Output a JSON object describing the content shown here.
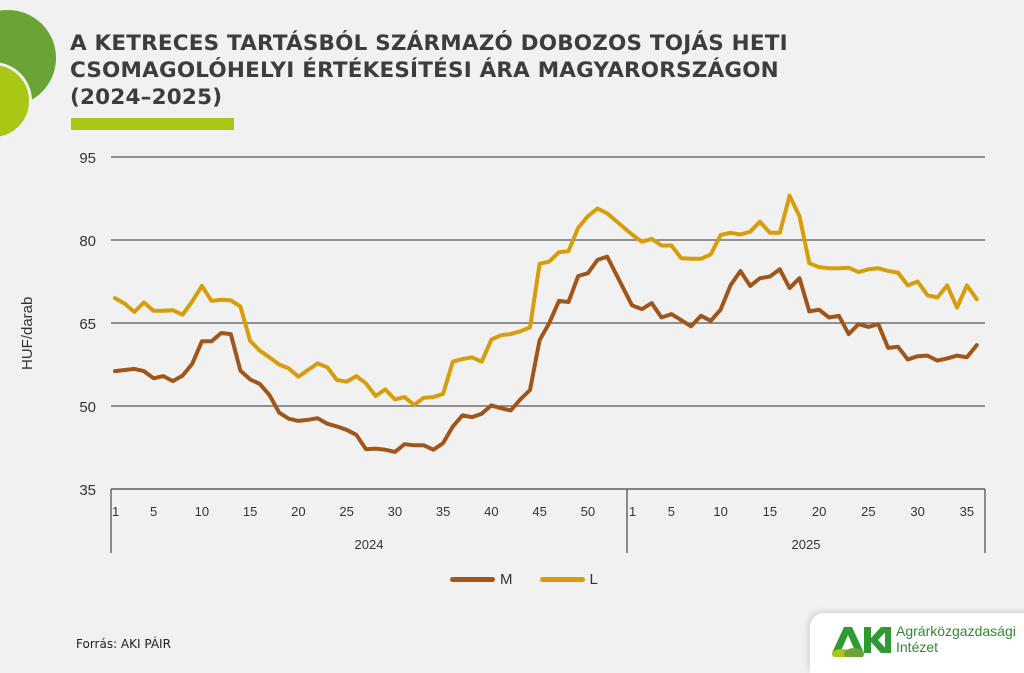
{
  "header": {
    "title": "A KETRECES TARTÁSBÓL SZÁRMAZÓ DOBOZOS TOJÁS HETI\nCSOMAGOLÓHELYI ÉRTÉKESÍTÉSI ÁRA MAGYARORSZÁGON\n(2024–2025)"
  },
  "colors": {
    "M": "#a0561a",
    "L": "#d69e0c",
    "accent_green": "#6aa437",
    "accent_lime": "#a9c816",
    "grid": "#555555"
  },
  "legend": {
    "items": [
      {
        "label": "M",
        "color": "#a0561a"
      },
      {
        "label": "L",
        "color": "#d69e0c"
      }
    ]
  },
  "footer": {
    "source": "Forrás: AKI PÁIR",
    "logo_mark": "AKI",
    "logo_line1": "Agrárközgazdasági",
    "logo_line2": "Intézet"
  },
  "chart_data": {
    "type": "line",
    "title": "A ketreces tartásból származó dobozos tojás heti csomagolóhelyi értékesítési ára Magyarországon (2024–2025)",
    "xlabel": "",
    "ylabel": "HUF/darab",
    "ylim": [
      35,
      95
    ],
    "yticks": [
      35,
      50,
      65,
      80,
      95
    ],
    "grid": true,
    "legend_position": "bottom",
    "x_groups": [
      {
        "label": "2024",
        "weeks": 52,
        "tick_labels": [
          "1",
          "5",
          "10",
          "15",
          "20",
          "25",
          "30",
          "35",
          "40",
          "45",
          "50"
        ]
      },
      {
        "label": "2025",
        "weeks": 36,
        "tick_labels": [
          "1",
          "5",
          "10",
          "15",
          "20",
          "25",
          "30",
          "35"
        ]
      }
    ],
    "series": [
      {
        "name": "M",
        "color": "#a0561a",
        "values_2024": [
          56.3,
          56.5,
          56.7,
          56.3,
          55.0,
          55.4,
          54.5,
          55.5,
          57.6,
          61.7,
          61.7,
          63.2,
          63.0,
          56.4,
          54.8,
          54.0,
          52.0,
          48.8,
          47.7,
          47.3,
          47.5,
          47.8,
          46.8,
          46.3,
          45.7,
          44.8,
          42.2,
          42.3,
          42.1,
          41.7,
          43.1,
          42.9,
          42.9,
          42.1,
          43.3,
          46.3,
          48.3,
          48.0,
          48.6,
          50.1,
          49.6,
          49.2,
          51.2,
          52.9,
          61.9,
          65.0,
          69.0,
          68.8,
          73.5,
          74.0,
          76.4,
          77.0
        ],
        "values_2025": [
          68.2,
          67.5,
          68.6,
          66.0,
          66.6,
          65.5,
          64.4,
          66.3,
          65.4,
          67.4,
          71.8,
          74.4,
          71.7,
          73.1,
          73.4,
          74.7,
          71.3,
          73.1,
          67.1,
          67.4,
          66.0,
          66.3,
          63.0,
          64.8,
          64.3,
          64.8,
          60.5,
          60.7,
          58.4,
          59.0,
          59.1,
          58.2,
          58.6,
          59.1,
          58.8,
          61.0
        ]
      },
      {
        "name": "L",
        "color": "#d69e0c",
        "values_2024": [
          69.5,
          68.5,
          67.0,
          68.7,
          67.2,
          67.2,
          67.3,
          66.5,
          68.9,
          71.7,
          69.0,
          69.2,
          69.1,
          68.0,
          61.8,
          60.0,
          58.8,
          57.5,
          56.8,
          55.3,
          56.5,
          57.7,
          57.0,
          54.7,
          54.4,
          55.4,
          54.1,
          51.8,
          53.0,
          51.2,
          51.6,
          50.2,
          51.5,
          51.6,
          52.2,
          58.0,
          58.5,
          58.8,
          58.0,
          62.0,
          62.8,
          63.0,
          63.5,
          64.2,
          75.7,
          76.1,
          77.8,
          78.0,
          82.2,
          84.3,
          85.7,
          84.8
        ],
        "values_2025": [
          81.0,
          79.7,
          80.2,
          79.0,
          79.0,
          76.7,
          76.6,
          76.6,
          77.4,
          80.9,
          81.3,
          81.0,
          81.5,
          83.3,
          81.3,
          81.3,
          88.0,
          84.3,
          75.8,
          75.1,
          74.9,
          74.9,
          75.0,
          74.2,
          74.7,
          74.9,
          74.4,
          74.1,
          71.8,
          72.5,
          70.0,
          69.6,
          71.8,
          67.8,
          71.8,
          69.3
        ]
      }
    ]
  }
}
